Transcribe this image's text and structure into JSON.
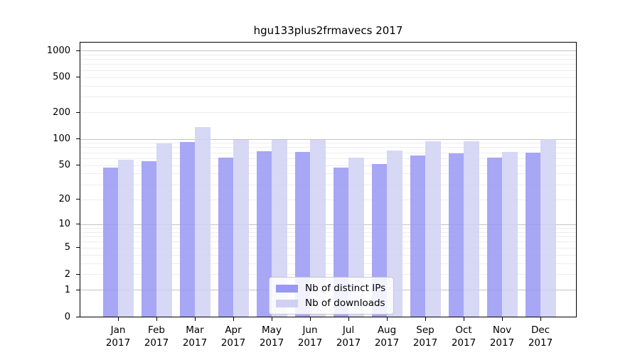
{
  "figure": {
    "title": "hgu133plus2frmavecs 2017"
  },
  "colors": {
    "ips_bar": "#9898f5",
    "downloads_bar": "#d0d0f5",
    "grid_minor": "#ededed",
    "grid_major": "#c3c3c3",
    "axis_frame": "#000000",
    "legend_border": "#c9c9c9",
    "legend_background": "#ffffff"
  },
  "chart_data": {
    "type": "bar",
    "title": "hgu133plus2frmavecs 2017",
    "categories": [
      "Jan 2017",
      "Feb 2017",
      "Mar 2017",
      "Apr 2017",
      "May 2017",
      "Jun 2017",
      "Jul 2017",
      "Aug 2017",
      "Sep 2017",
      "Oct 2017",
      "Nov 2017",
      "Dec 2017"
    ],
    "series": [
      {
        "name": "Nb of distinct IPs",
        "color": "#9898f5",
        "values": [
          47,
          56,
          92,
          61,
          72,
          71,
          47,
          52,
          64,
          68,
          61,
          69
        ]
      },
      {
        "name": "Nb of downloads",
        "color": "#d0d0f5",
        "values": [
          58,
          88,
          136,
          97,
          98,
          97,
          61,
          73,
          93,
          93,
          71,
          99
        ]
      }
    ],
    "xlabel": "",
    "ylabel": "",
    "y_scale": "log10(value+1)",
    "y_ticks": [
      0,
      1,
      2,
      5,
      10,
      20,
      50,
      100,
      200,
      500,
      1000
    ],
    "ylim": [
      0,
      1224
    ],
    "grid": "horizontal",
    "legend_position": "inside-bottom-center"
  }
}
